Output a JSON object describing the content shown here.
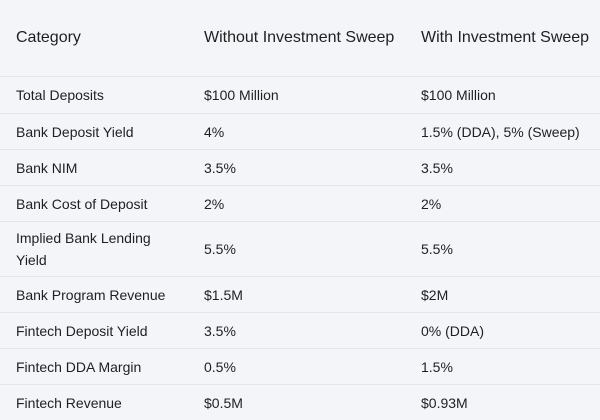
{
  "table": {
    "headers": [
      "Category",
      "Without Investment Sweep",
      "With Investment Sweep"
    ],
    "rows": [
      [
        "Total Deposits",
        "$100 Million",
        "$100 Million"
      ],
      [
        "Bank Deposit Yield",
        "4%",
        "1.5% (DDA), 5% (Sweep)"
      ],
      [
        "Bank NIM",
        "3.5%",
        "3.5%"
      ],
      [
        "Bank Cost of Deposit",
        "2%",
        "2%"
      ],
      [
        "Implied Bank Lending Yield",
        "5.5%",
        "5.5%"
      ],
      [
        "Bank Program Revenue",
        "$1.5M",
        "$2M"
      ],
      [
        "Fintech Deposit Yield",
        "3.5%",
        "0% (DDA)"
      ],
      [
        "Fintech DDA Margin",
        "0.5%",
        "1.5%"
      ],
      [
        "Fintech Revenue",
        "$0.5M",
        "$0.93M"
      ]
    ]
  }
}
